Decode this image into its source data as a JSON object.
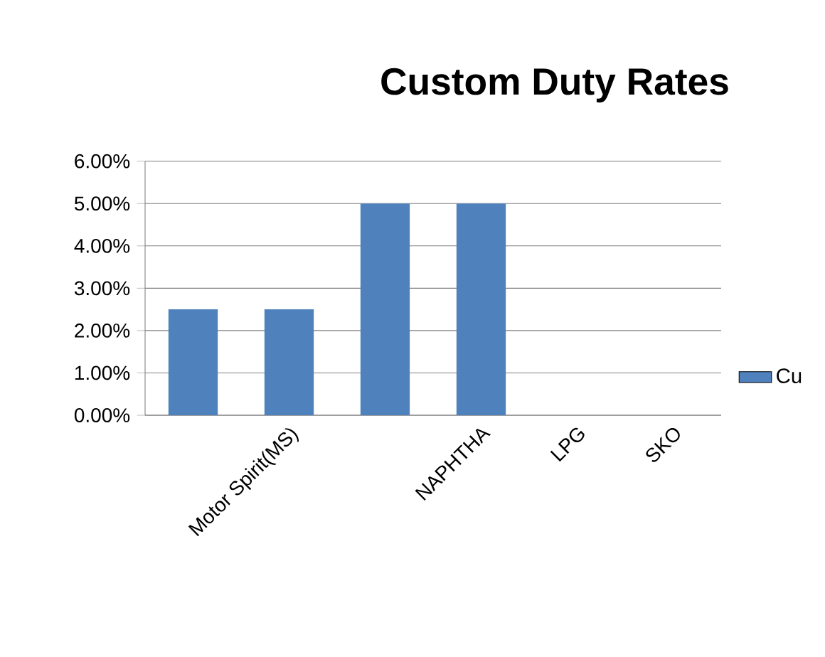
{
  "chart_data": {
    "type": "bar",
    "title": "Custom Duty Rates",
    "categories": [
      null,
      "Motor Spirit(MS)",
      null,
      "NAPHTHA",
      "LPG",
      "SKO"
    ],
    "series": [
      {
        "name": "Cu",
        "color": "#4f81bd",
        "values": [
          2.5,
          2.5,
          5,
          5,
          0,
          0
        ]
      }
    ],
    "ylim": [
      0,
      6
    ],
    "yticks": [
      {
        "value": 0,
        "label": "0.00%"
      },
      {
        "value": 1,
        "label": "1.00%"
      },
      {
        "value": 2,
        "label": "2.00%"
      },
      {
        "value": 3,
        "label": "3.00%"
      },
      {
        "value": 4,
        "label": "4.00%"
      },
      {
        "value": 5,
        "label": "5.00%"
      },
      {
        "value": 6,
        "label": "6.00%"
      }
    ],
    "grid": "y",
    "legend": "right"
  }
}
